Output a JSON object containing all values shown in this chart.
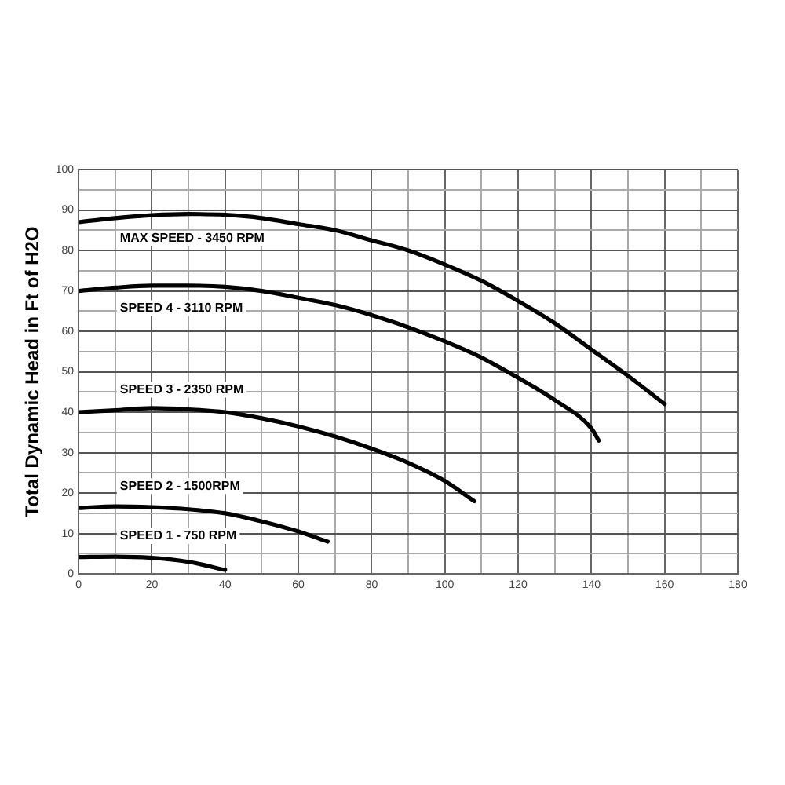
{
  "chart_data": {
    "type": "line",
    "ylabel": "Total Dynamic Head in Ft of H2O",
    "xlim": [
      0,
      180
    ],
    "ylim": [
      0,
      100
    ],
    "xticks": [
      0,
      {
        "value": 10,
        "label": null
      },
      20,
      {
        "value": 30,
        "label": null
      },
      40,
      {
        "value": 50,
        "label": null
      },
      60,
      {
        "value": 70,
        "label": null
      },
      80,
      {
        "value": 90,
        "label": null
      },
      100,
      {
        "value": 110,
        "label": null
      },
      120,
      {
        "value": 130,
        "label": null
      },
      140,
      {
        "value": 150,
        "label": null
      },
      160,
      {
        "value": 170,
        "label": null
      },
      180
    ],
    "yticks": [
      0,
      {
        "value": 5,
        "label": null
      },
      10,
      {
        "value": 15,
        "label": null
      },
      20,
      {
        "value": 25,
        "label": null
      },
      30,
      {
        "value": 35,
        "label": null
      },
      40,
      {
        "value": 45,
        "label": null
      },
      50,
      {
        "value": 55,
        "label": null
      },
      60,
      {
        "value": 65,
        "label": null
      },
      70,
      {
        "value": 75,
        "label": null
      },
      80,
      {
        "value": 85,
        "label": null
      },
      90,
      {
        "value": 95,
        "label": null
      },
      100
    ],
    "grid": true,
    "legend": false,
    "marker": "none",
    "line_style": "solid",
    "series": [
      {
        "name": "MAX SPEED - 3450 RPM",
        "color": "#000000",
        "x": [
          0,
          10,
          20,
          30,
          40,
          50,
          60,
          70,
          80,
          90,
          100,
          110,
          120,
          130,
          140,
          150,
          160
        ],
        "values": [
          87,
          88,
          88.7,
          89,
          88.8,
          88,
          86.5,
          85,
          82.5,
          80,
          76.5,
          72.5,
          67.5,
          62,
          55.5,
          49,
          42
        ]
      },
      {
        "name": "SPEED 4 - 3110 RPM",
        "color": "#000000",
        "x": [
          0,
          10,
          20,
          30,
          40,
          50,
          60,
          70,
          80,
          90,
          100,
          110,
          120,
          130,
          140,
          142
        ],
        "values": [
          70,
          70.8,
          71.3,
          71.3,
          71,
          70,
          68.3,
          66.5,
          64,
          61,
          57.5,
          53.5,
          48.5,
          43,
          36,
          33
        ]
      },
      {
        "name": "SPEED 3 - 2350 RPM",
        "color": "#000000",
        "x": [
          0,
          10,
          20,
          30,
          40,
          50,
          60,
          70,
          80,
          90,
          100,
          108
        ],
        "values": [
          40,
          40.5,
          41,
          40.7,
          40,
          38.5,
          36.5,
          34,
          31,
          27.5,
          23,
          18
        ]
      },
      {
        "name": "SPEED 2 - 1500RPM",
        "color": "#000000",
        "x": [
          0,
          10,
          20,
          30,
          40,
          50,
          60,
          68
        ],
        "values": [
          16.3,
          16.7,
          16.5,
          16,
          15,
          13,
          10.5,
          8
        ]
      },
      {
        "name": "SPEED 1 - 750 RPM",
        "color": "#000000",
        "x": [
          0,
          10,
          20,
          30,
          40
        ],
        "values": [
          4.2,
          4.3,
          4,
          3,
          1
        ]
      }
    ]
  }
}
